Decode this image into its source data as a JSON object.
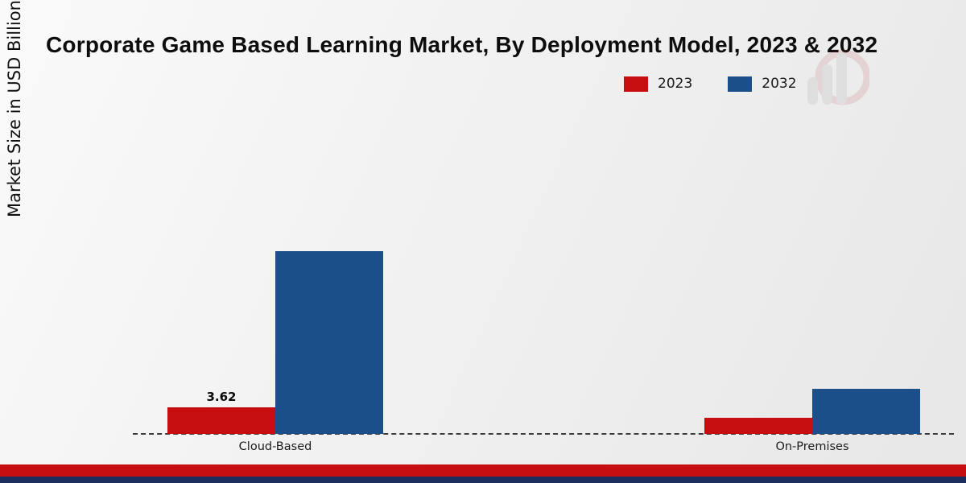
{
  "chart_data": {
    "type": "bar",
    "title": "Corporate Game Based Learning Market, By Deployment Model, 2023 & 2032",
    "ylabel": "Market Size in USD Billion",
    "xlabel": "",
    "categories": [
      "Cloud-Based",
      "On-Premises"
    ],
    "series": [
      {
        "name": "2023",
        "color": "#c60d0f",
        "values": [
          3.62,
          2.2
        ],
        "value_labels": [
          "3.62",
          ""
        ]
      },
      {
        "name": "2032",
        "color": "#1b4f8a",
        "values": [
          24.9,
          6.1
        ],
        "value_labels": [
          "",
          ""
        ]
      }
    ],
    "ylim": [
      0,
      26
    ],
    "grid": false,
    "legend_position": "top-right",
    "baseline_style": "dashed"
  },
  "decor": {
    "footer_band_red_color": "#c60d0f",
    "footer_band_navy_color": "#1b2f5e",
    "watermark_icon": "bar-chart-logo-watermark"
  }
}
